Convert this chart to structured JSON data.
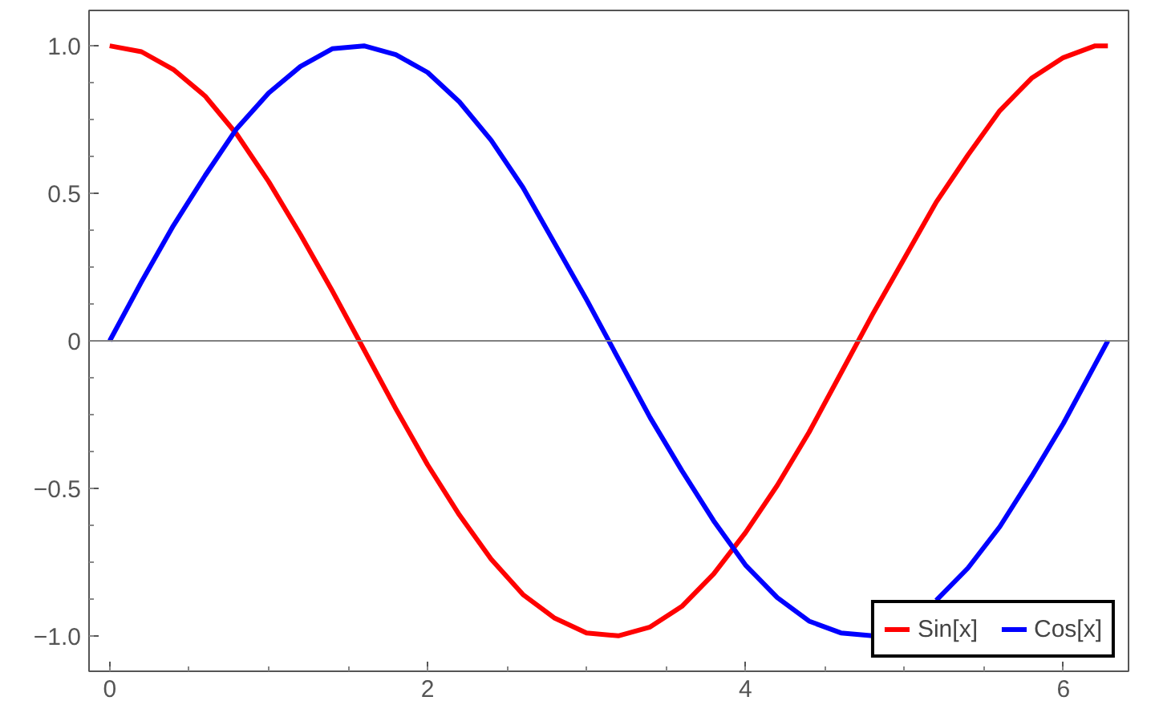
{
  "chart_data": {
    "type": "line",
    "x": [
      0,
      0.2,
      0.4,
      0.6,
      0.8,
      1.0,
      1.2,
      1.4,
      1.6,
      1.8,
      2.0,
      2.2,
      2.4,
      2.6,
      2.8,
      3.0,
      3.2,
      3.4,
      3.6,
      3.8,
      4.0,
      4.2,
      4.4,
      4.6,
      4.8,
      5.0,
      5.2,
      5.4,
      5.6,
      5.8,
      6.0,
      6.2,
      6.28
    ],
    "series": [
      {
        "name": "Sin[x]",
        "color": "#ff0000",
        "values": [
          1.0,
          0.98,
          0.92,
          0.83,
          0.7,
          0.54,
          0.36,
          0.17,
          -0.03,
          -0.23,
          -0.42,
          -0.59,
          -0.74,
          -0.86,
          -0.94,
          -0.99,
          -1.0,
          -0.97,
          -0.9,
          -0.79,
          -0.65,
          -0.49,
          -0.31,
          -0.11,
          0.09,
          0.28,
          0.47,
          0.63,
          0.78,
          0.89,
          0.96,
          1.0,
          1.0
        ]
      },
      {
        "name": "Cos[x]",
        "color": "#0000ff",
        "values": [
          0.0,
          0.2,
          0.39,
          0.56,
          0.72,
          0.84,
          0.93,
          0.99,
          1.0,
          0.97,
          0.91,
          0.81,
          0.68,
          0.52,
          0.33,
          0.14,
          -0.06,
          -0.26,
          -0.44,
          -0.61,
          -0.76,
          -0.87,
          -0.95,
          -0.99,
          -1.0,
          null,
          -0.88,
          -0.77,
          -0.63,
          -0.46,
          -0.28,
          -0.08,
          0.0
        ]
      }
    ],
    "xlim": [
      -0.13,
      6.41
    ],
    "ylim": [
      -1.12,
      1.12
    ],
    "xticks": [
      0,
      2,
      4,
      6
    ],
    "yticks": [
      {
        "value": -1,
        "label": "−1.0"
      },
      {
        "value": -0.5,
        "label": "−0.5"
      },
      {
        "value": 0,
        "label": "0"
      },
      {
        "value": 0.5,
        "label": "0.5"
      },
      {
        "value": 1,
        "label": "1.0"
      }
    ],
    "ref_lines": [
      {
        "axis": "y",
        "value": 0,
        "color": "#808080"
      }
    ],
    "grid": false,
    "legend": "bottom right",
    "line_style": "solid",
    "marker": "none"
  }
}
